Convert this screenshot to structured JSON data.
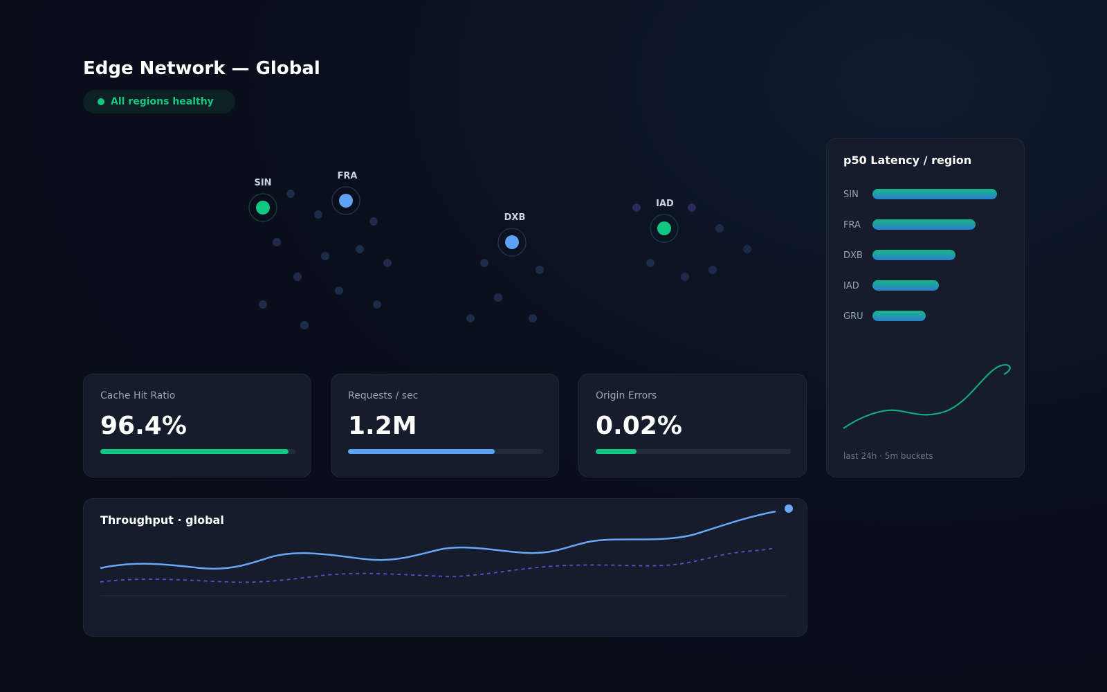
{
  "header": {
    "title": "Edge Network — Global",
    "status": {
      "label": "All regions healthy",
      "color": "#10c880"
    }
  },
  "map": {
    "regions": [
      {
        "code": "SIN",
        "status_color": "#10c880"
      },
      {
        "code": "FRA",
        "status_color": "#5ea2f5"
      },
      {
        "code": "DXB",
        "status_color": "#5ea2f5"
      },
      {
        "code": "IAD",
        "status_color": "#10c880"
      }
    ]
  },
  "kpis": [
    {
      "label": "Cache Hit Ratio",
      "value": "96.4%",
      "fill_fraction": 0.964,
      "color": "#10c880"
    },
    {
      "label": "Requests / sec",
      "value": "1.2M",
      "fill_fraction": 0.75,
      "color": "#5ea2f5"
    },
    {
      "label": "Origin Errors",
      "value": "0.02%",
      "fill_fraction": 0.21,
      "color": "#10c880"
    }
  ],
  "throughput": {
    "title": "Throughput · global",
    "primary_color": "#6aa8f7",
    "secondary_color": "#5a4fc8"
  },
  "latency": {
    "title": "p50 Latency / region",
    "footnote": "last 24h · 5m buckets",
    "rows": [
      {
        "region": "SIN",
        "fraction": 0.75
      },
      {
        "region": "FRA",
        "fraction": 0.62
      },
      {
        "region": "DXB",
        "fraction": 0.5
      },
      {
        "region": "IAD",
        "fraction": 0.4
      },
      {
        "region": "GRU",
        "fraction": 0.32
      }
    ],
    "trend_color": "#17a87a"
  }
}
